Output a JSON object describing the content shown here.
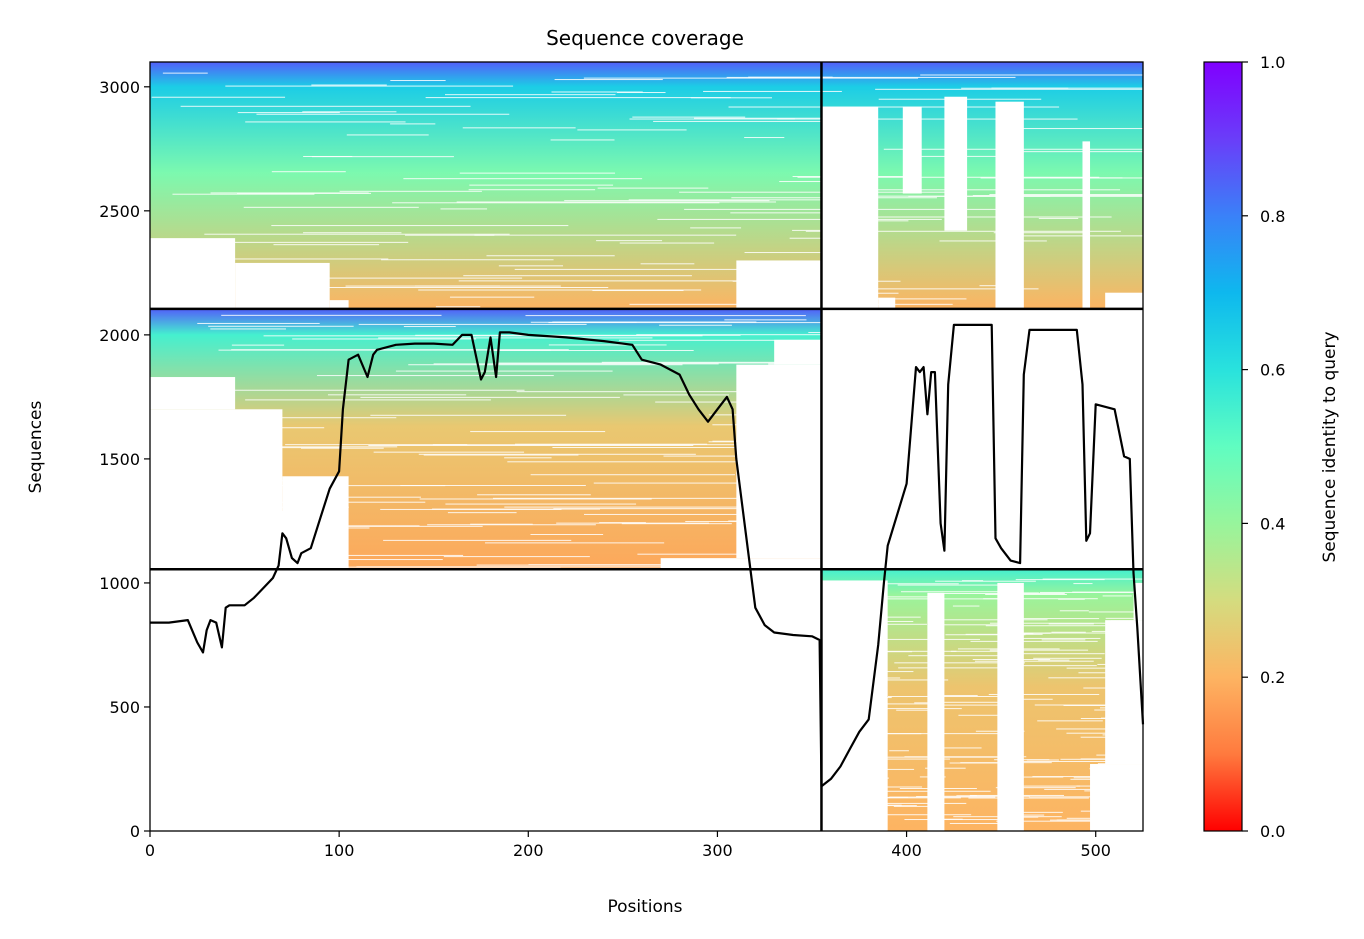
{
  "chart_data": {
    "type": "heatmap",
    "title": "Sequence coverage",
    "xlabel": "Positions",
    "ylabel": "Sequences",
    "xlim": [
      0,
      525
    ],
    "ylim": [
      0,
      3100
    ],
    "x_ticks": [
      0,
      100,
      200,
      300,
      400,
      500
    ],
    "y_ticks": [
      0,
      500,
      1000,
      1500,
      2000,
      2500,
      3000
    ],
    "colorbar": {
      "label": "Sequence identity to query",
      "colormap": "rainbow",
      "min": 0.0,
      "max": 1.0,
      "ticks": [
        "0.0",
        "0.2",
        "0.4",
        "0.6",
        "0.8",
        "1.0"
      ],
      "stops": [
        "#ff0000",
        "#ff7a3e",
        "#fdb462",
        "#d4dc7f",
        "#97f59c",
        "#60fdc1",
        "#29e2dd",
        "#0eb8ee",
        "#3a81f8",
        "#6a3df9",
        "#8000ff"
      ]
    },
    "chain_boundary_x": 355,
    "block_boundaries_y": [
      1055,
      2105
    ],
    "blocks": [
      {
        "name": "block-bottom",
        "rows": [
          0,
          1055
        ],
        "covered_x": [
          [
            355,
            525
          ]
        ],
        "identity_top": 0.55,
        "identity_bottom": 0.2,
        "identity_mid": 0.24
      },
      {
        "name": "block-middle",
        "rows": [
          1055,
          2105
        ],
        "covered_x": [
          [
            0,
            355
          ]
        ],
        "identity_top": 0.85,
        "identity_bottom": 0.18,
        "identity_mid": 0.25
      },
      {
        "name": "block-top",
        "rows": [
          2105,
          3100
        ],
        "covered_x": [
          [
            0,
            525
          ]
        ],
        "identity_top": 0.85,
        "identity_bottom": 0.2,
        "identity_mid": 0.45
      }
    ],
    "coverage_line": {
      "color": "#000000",
      "x": [
        0,
        10,
        20,
        25,
        28,
        30,
        32,
        35,
        38,
        40,
        42,
        50,
        55,
        60,
        65,
        68,
        70,
        72,
        75,
        78,
        80,
        85,
        90,
        95,
        100,
        102,
        105,
        110,
        115,
        118,
        120,
        130,
        140,
        150,
        160,
        165,
        170,
        175,
        177,
        180,
        183,
        185,
        190,
        200,
        220,
        240,
        255,
        260,
        270,
        280,
        285,
        290,
        295,
        300,
        305,
        308,
        310,
        315,
        320,
        325,
        330,
        340,
        350,
        354,
        355,
        360,
        365,
        370,
        375,
        380,
        385,
        388,
        390,
        400,
        405,
        407,
        409,
        411,
        413,
        415,
        418,
        420,
        422,
        425,
        430,
        445,
        447,
        450,
        455,
        460,
        462,
        465,
        470,
        490,
        493,
        495,
        497,
        500,
        510,
        515,
        518,
        520,
        522,
        525
      ],
      "y": [
        840,
        840,
        850,
        760,
        720,
        810,
        850,
        840,
        740,
        900,
        910,
        910,
        940,
        980,
        1020,
        1070,
        1200,
        1180,
        1100,
        1080,
        1120,
        1140,
        1260,
        1380,
        1450,
        1700,
        1900,
        1920,
        1830,
        1920,
        1940,
        1960,
        1965,
        1965,
        1960,
        2000,
        2000,
        1820,
        1850,
        1990,
        1830,
        2010,
        2010,
        2000,
        1990,
        1975,
        1960,
        1900,
        1880,
        1840,
        1760,
        1700,
        1650,
        1700,
        1750,
        1700,
        1500,
        1200,
        900,
        830,
        800,
        790,
        785,
        770,
        180,
        210,
        260,
        330,
        400,
        450,
        750,
        1000,
        1150,
        1400,
        1870,
        1850,
        1870,
        1680,
        1850,
        1850,
        1240,
        1130,
        1800,
        2040,
        2040,
        2040,
        1180,
        1140,
        1090,
        1080,
        1840,
        2020,
        2020,
        2020,
        1800,
        1170,
        1200,
        1720,
        1700,
        1510,
        1500,
        1040,
        820,
        430
      ]
    }
  }
}
